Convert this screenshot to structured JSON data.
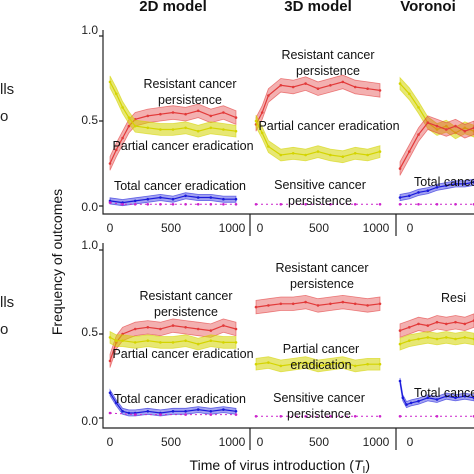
{
  "figure": {
    "ylabel": "Frequency of outcomes",
    "xlabel": "Time of virus introduction (",
    "xlabel_var": "T",
    "xlabel_sub": "I",
    "xlabel_close": ")",
    "column_titles": [
      "2D model",
      "3D model",
      "Voronoi"
    ],
    "row_side_labels": [
      [
        "lls",
        "o"
      ],
      [
        "lls",
        "o"
      ]
    ],
    "y_ticks": [
      "0.0",
      "0.5",
      "1.0"
    ],
    "x_ticks": [
      "0",
      "500",
      "1000"
    ]
  },
  "colors": {
    "resistant": "#e23a3a",
    "partial": "#d4d400",
    "total": "#1a1adb",
    "sensitive": "#cc22cc",
    "axis": "#222222"
  },
  "chart_data": [
    {
      "panel": "top-2D",
      "type": "line",
      "xlim": [
        0,
        1000
      ],
      "ylim": [
        0,
        1
      ],
      "annotations": [
        "Resistant cancer",
        "persistence",
        "Partial cancer eradication",
        "Total cancer eradication"
      ],
      "series": [
        {
          "key": "resistant",
          "x": [
            0,
            50,
            100,
            150,
            200,
            300,
            400,
            500,
            600,
            700,
            800,
            900,
            1000
          ],
          "y": [
            0.25,
            0.33,
            0.4,
            0.47,
            0.51,
            0.53,
            0.54,
            0.55,
            0.54,
            0.56,
            0.53,
            0.55,
            0.52
          ]
        },
        {
          "key": "partial",
          "x": [
            0,
            50,
            100,
            150,
            200,
            300,
            400,
            500,
            600,
            700,
            800,
            900,
            1000
          ],
          "y": [
            0.73,
            0.66,
            0.58,
            0.52,
            0.47,
            0.46,
            0.45,
            0.45,
            0.46,
            0.44,
            0.46,
            0.45,
            0.44
          ]
        },
        {
          "key": "total",
          "x": [
            0,
            100,
            200,
            300,
            400,
            500,
            600,
            700,
            800,
            900,
            1000
          ],
          "y": [
            0.03,
            0.02,
            0.03,
            0.04,
            0.05,
            0.04,
            0.06,
            0.05,
            0.05,
            0.04,
            0.04
          ]
        },
        {
          "key": "sensitive",
          "x": [
            0,
            100,
            200,
            300,
            400,
            500,
            600,
            700,
            800,
            900,
            1000
          ],
          "y": [
            0.02,
            0.01,
            0.01,
            0.01,
            0.01,
            0.01,
            0.01,
            0.01,
            0.01,
            0.01,
            0.01
          ]
        }
      ]
    },
    {
      "panel": "top-3D",
      "type": "line",
      "xlim": [
        0,
        1000
      ],
      "ylim": [
        0,
        1
      ],
      "annotations": [
        "Resistant cancer",
        "persistence",
        "Partial cancer eradication",
        "Sensitive cancer",
        "persistence"
      ],
      "series": [
        {
          "key": "resistant",
          "x": [
            0,
            50,
            100,
            200,
            300,
            400,
            500,
            600,
            700,
            800,
            900,
            1000
          ],
          "y": [
            0.48,
            0.55,
            0.65,
            0.71,
            0.7,
            0.72,
            0.69,
            0.71,
            0.73,
            0.7,
            0.69,
            0.68
          ]
        },
        {
          "key": "partial",
          "x": [
            0,
            50,
            100,
            200,
            300,
            400,
            500,
            600,
            700,
            800,
            900,
            1000
          ],
          "y": [
            0.5,
            0.43,
            0.35,
            0.3,
            0.31,
            0.3,
            0.32,
            0.3,
            0.29,
            0.31,
            0.3,
            0.32
          ]
        },
        {
          "key": "sensitive",
          "x": [
            0,
            200,
            400,
            600,
            800,
            1000
          ],
          "y": [
            0.01,
            0.01,
            0.01,
            0.01,
            0.01,
            0.01
          ]
        }
      ]
    },
    {
      "panel": "top-Voronoi",
      "type": "line",
      "xlim": [
        0,
        400
      ],
      "ylim": [
        0,
        1
      ],
      "annotations": [
        "Total cancer"
      ],
      "series": [
        {
          "key": "partial",
          "x": [
            0,
            50,
            100,
            150,
            200,
            250,
            300,
            350,
            400
          ],
          "y": [
            0.72,
            0.66,
            0.58,
            0.49,
            0.45,
            0.47,
            0.43,
            0.46,
            0.44
          ]
        },
        {
          "key": "resistant",
          "x": [
            0,
            50,
            100,
            150,
            200,
            250,
            300,
            350,
            400
          ],
          "y": [
            0.22,
            0.32,
            0.42,
            0.49,
            0.47,
            0.45,
            0.47,
            0.44,
            0.46
          ]
        },
        {
          "key": "total",
          "x": [
            0,
            50,
            100,
            150,
            200,
            250,
            300,
            350,
            400
          ],
          "y": [
            0.05,
            0.06,
            0.08,
            0.09,
            0.11,
            0.12,
            0.13,
            0.13,
            0.14
          ]
        },
        {
          "key": "sensitive",
          "x": [
            0,
            100,
            200,
            300,
            400
          ],
          "y": [
            0.01,
            0.01,
            0.01,
            0.01,
            0.01
          ]
        }
      ]
    },
    {
      "panel": "bottom-2D",
      "type": "line",
      "xlim": [
        0,
        1000
      ],
      "ylim": [
        0,
        1
      ],
      "annotations": [
        "Resistant cancer",
        "persistence",
        "Partial cancer eradication",
        "Total cancer eradication"
      ],
      "series": [
        {
          "key": "resistant",
          "x": [
            0,
            50,
            100,
            200,
            300,
            400,
            500,
            600,
            700,
            800,
            900,
            1000
          ],
          "y": [
            0.34,
            0.45,
            0.5,
            0.53,
            0.54,
            0.53,
            0.55,
            0.54,
            0.53,
            0.52,
            0.55,
            0.53
          ]
        },
        {
          "key": "partial",
          "x": [
            0,
            50,
            100,
            200,
            300,
            400,
            500,
            600,
            700,
            800,
            900,
            1000
          ],
          "y": [
            0.48,
            0.46,
            0.46,
            0.45,
            0.46,
            0.45,
            0.45,
            0.46,
            0.44,
            0.46,
            0.45,
            0.45
          ]
        },
        {
          "key": "total",
          "x": [
            0,
            50,
            100,
            150,
            200,
            300,
            400,
            500,
            600,
            700,
            800,
            900,
            1000
          ],
          "y": [
            0.15,
            0.09,
            0.04,
            0.03,
            0.03,
            0.04,
            0.03,
            0.04,
            0.04,
            0.05,
            0.04,
            0.05,
            0.04
          ]
        },
        {
          "key": "sensitive",
          "x": [
            0,
            200,
            400,
            600,
            800,
            1000
          ],
          "y": [
            0.03,
            0.02,
            0.02,
            0.02,
            0.02,
            0.02
          ]
        }
      ]
    },
    {
      "panel": "bottom-3D",
      "type": "line",
      "xlim": [
        0,
        1000
      ],
      "ylim": [
        0,
        1
      ],
      "annotations": [
        "Resistant cancer",
        "persistence",
        "Partial cancer",
        "eradication",
        "Sensitive cancer",
        "persistence"
      ],
      "series": [
        {
          "key": "resistant",
          "x": [
            0,
            100,
            200,
            300,
            400,
            500,
            600,
            700,
            800,
            900,
            1000
          ],
          "y": [
            0.66,
            0.67,
            0.68,
            0.68,
            0.69,
            0.67,
            0.68,
            0.69,
            0.68,
            0.67,
            0.68
          ]
        },
        {
          "key": "partial",
          "x": [
            0,
            100,
            200,
            300,
            400,
            500,
            600,
            700,
            800,
            900,
            1000
          ],
          "y": [
            0.32,
            0.33,
            0.31,
            0.32,
            0.33,
            0.31,
            0.32,
            0.33,
            0.31,
            0.32,
            0.32
          ]
        },
        {
          "key": "sensitive",
          "x": [
            0,
            200,
            400,
            600,
            800,
            1000
          ],
          "y": [
            0.01,
            0.01,
            0.01,
            0.01,
            0.01,
            0.01
          ]
        }
      ]
    },
    {
      "panel": "bottom-Voronoi",
      "type": "line",
      "xlim": [
        0,
        400
      ],
      "ylim": [
        0,
        1
      ],
      "annotations": [
        "Resi",
        "Total cancer"
      ],
      "series": [
        {
          "key": "resistant",
          "x": [
            0,
            50,
            100,
            150,
            200,
            250,
            300,
            350,
            400
          ],
          "y": [
            0.52,
            0.54,
            0.56,
            0.55,
            0.57,
            0.56,
            0.57,
            0.56,
            0.58
          ]
        },
        {
          "key": "partial",
          "x": [
            0,
            50,
            100,
            150,
            200,
            250,
            300,
            350,
            400
          ],
          "y": [
            0.44,
            0.46,
            0.47,
            0.48,
            0.47,
            0.48,
            0.47,
            0.48,
            0.47
          ]
        },
        {
          "key": "total",
          "x": [
            0,
            15,
            35,
            60,
            100,
            150,
            200,
            250,
            300,
            350,
            400
          ],
          "y": [
            0.22,
            0.12,
            0.08,
            0.09,
            0.1,
            0.12,
            0.11,
            0.13,
            0.12,
            0.13,
            0.12
          ]
        },
        {
          "key": "sensitive",
          "x": [
            0,
            200,
            400
          ],
          "y": [
            0.01,
            0.01,
            0.01
          ]
        }
      ]
    }
  ]
}
